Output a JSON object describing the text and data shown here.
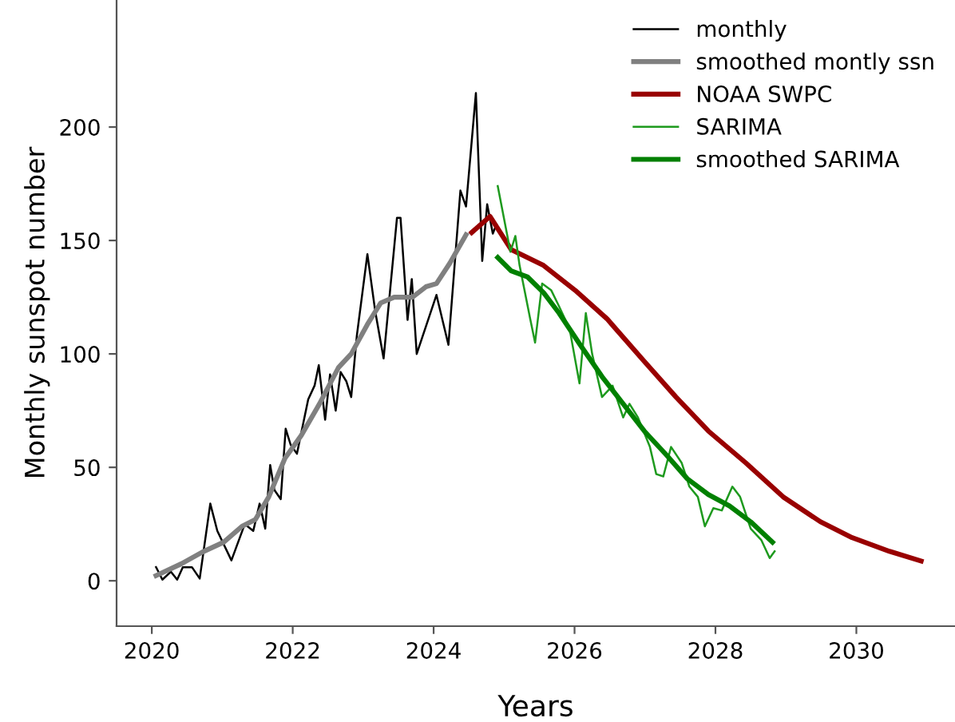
{
  "chart_data": {
    "type": "line",
    "xlabel": "Years",
    "ylabel": "Monthly sunspot number",
    "xlim": [
      2019.5,
      2031.4
    ],
    "ylim": [
      -20,
      256
    ],
    "xticks": [
      2020,
      2022,
      2024,
      2026,
      2028,
      2030
    ],
    "yticks": [
      0,
      50,
      100,
      150,
      200
    ],
    "grid": false,
    "legend": "top right",
    "marker": "none",
    "line_style": "solid",
    "series": [
      {
        "name": "monthly",
        "color": "#000000",
        "x": [
          2020.06,
          2020.15,
          2020.27,
          2020.36,
          2020.44,
          2020.57,
          2020.68,
          2020.83,
          2020.93,
          2021.13,
          2021.32,
          2021.44,
          2021.53,
          2021.61,
          2021.68,
          2021.74,
          2021.83,
          2021.9,
          2021.97,
          2022.06,
          2022.22,
          2022.31,
          2022.37,
          2022.46,
          2022.53,
          2022.61,
          2022.68,
          2022.76,
          2022.83,
          2022.91,
          2023.06,
          2023.17,
          2023.29,
          2023.48,
          2023.53,
          2023.63,
          2023.69,
          2023.76,
          2024.04,
          2024.21,
          2024.38,
          2024.46,
          2024.6,
          2024.69,
          2024.76,
          2024.84,
          2024.89
        ],
        "values": [
          6,
          0.5,
          4,
          0.5,
          6,
          6,
          1,
          34,
          22,
          9,
          25,
          22,
          34,
          23,
          51,
          40,
          36,
          67,
          60,
          56,
          80,
          86,
          95,
          71,
          91,
          75,
          92,
          88,
          81,
          108,
          144,
          119,
          98,
          160,
          160,
          115,
          133,
          100,
          126,
          104,
          172,
          165,
          215,
          141,
          166,
          153,
          157
        ]
      },
      {
        "name": "smoothed montly ssn",
        "color": "#808080",
        "x": [
          2020.06,
          2020.42,
          2020.72,
          2021.02,
          2021.28,
          2021.47,
          2021.66,
          2021.89,
          2022.12,
          2022.38,
          2022.65,
          2022.83,
          2023.06,
          2023.25,
          2023.44,
          2023.7,
          2023.89,
          2024.04,
          2024.23,
          2024.46
        ],
        "values": [
          2.3,
          7.5,
          12.7,
          17,
          24,
          27,
          37,
          54,
          64,
          78,
          94,
          100,
          113,
          122.5,
          125,
          125,
          129.6,
          131,
          140,
          152.5
        ]
      },
      {
        "name": "NOAA SWPC",
        "color": "#990000",
        "x": [
          2024.54,
          2024.8,
          2025.1,
          2025.56,
          2026.01,
          2026.46,
          2026.99,
          2027.44,
          2027.9,
          2028.43,
          2028.96,
          2029.49,
          2029.94,
          2030.47,
          2030.92
        ],
        "values": [
          153.5,
          160.6,
          146,
          139,
          128,
          115.5,
          96.7,
          81,
          66,
          52,
          37,
          26,
          19,
          13,
          8.7
        ]
      },
      {
        "name": "SARIMA",
        "color": "#1e9a1e",
        "x": [
          2024.91,
          2025.09,
          2025.16,
          2025.22,
          2025.37,
          2025.44,
          2025.54,
          2025.67,
          2025.78,
          2025.93,
          2026.07,
          2026.16,
          2026.25,
          2026.39,
          2026.54,
          2026.69,
          2026.78,
          2026.9,
          2027.07,
          2027.16,
          2027.26,
          2027.37,
          2027.52,
          2027.63,
          2027.75,
          2027.85,
          2027.97,
          2028.09,
          2028.24,
          2028.35,
          2028.5,
          2028.65,
          2028.77,
          2028.84
        ],
        "values": [
          174,
          145,
          152,
          139,
          115.5,
          105,
          131,
          128,
          121,
          111,
          87,
          118,
          100,
          81,
          86,
          72,
          78,
          72,
          59,
          47,
          46,
          59,
          52,
          41.5,
          37,
          24,
          32,
          31,
          41.5,
          37,
          23,
          18,
          10,
          13
        ]
      },
      {
        "name": "smoothed SARIMA",
        "color": "#008000",
        "x": [
          2024.91,
          2025.1,
          2025.33,
          2025.56,
          2025.78,
          2026.08,
          2026.39,
          2026.69,
          2026.99,
          2027.3,
          2027.6,
          2027.9,
          2028.2,
          2028.5,
          2028.81
        ],
        "values": [
          142.5,
          136.6,
          134,
          127,
          118,
          104,
          90,
          78,
          66,
          55.6,
          45,
          38,
          33,
          26,
          17
        ]
      }
    ]
  }
}
